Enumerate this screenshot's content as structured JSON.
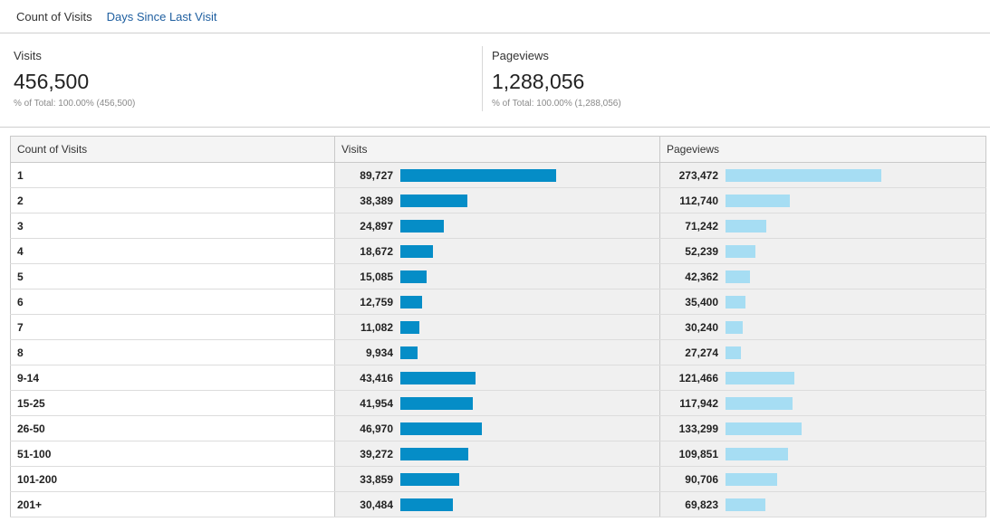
{
  "tabs": [
    {
      "label": "Count of Visits",
      "active": true
    },
    {
      "label": "Days Since Last Visit",
      "active": false
    }
  ],
  "summary": {
    "visits": {
      "label": "Visits",
      "value": "456,500",
      "sub": "% of Total: 100.00% (456,500)"
    },
    "pageviews": {
      "label": "Pageviews",
      "value": "1,288,056",
      "sub": "% of Total: 100.00% (1,288,056)"
    }
  },
  "colors": {
    "visits_bar": "#058dc7",
    "pageviews_bar": "#a6ddf3",
    "tab_link": "#1f5fa0"
  },
  "table": {
    "headers": [
      "Count of Visits",
      "Visits",
      "Pageviews"
    ],
    "rows": [
      {
        "label": "1",
        "visits": "89,727",
        "pageviews": "273,472"
      },
      {
        "label": "2",
        "visits": "38,389",
        "pageviews": "112,740"
      },
      {
        "label": "3",
        "visits": "24,897",
        "pageviews": "71,242"
      },
      {
        "label": "4",
        "visits": "18,672",
        "pageviews": "52,239"
      },
      {
        "label": "5",
        "visits": "15,085",
        "pageviews": "42,362"
      },
      {
        "label": "6",
        "visits": "12,759",
        "pageviews": "35,400"
      },
      {
        "label": "7",
        "visits": "11,082",
        "pageviews": "30,240"
      },
      {
        "label": "8",
        "visits": "9,934",
        "pageviews": "27,274"
      },
      {
        "label": "9-14",
        "visits": "43,416",
        "pageviews": "121,466"
      },
      {
        "label": "15-25",
        "visits": "41,954",
        "pageviews": "117,942"
      },
      {
        "label": "26-50",
        "visits": "46,970",
        "pageviews": "133,299"
      },
      {
        "label": "51-100",
        "visits": "39,272",
        "pageviews": "109,851"
      },
      {
        "label": "101-200",
        "visits": "33,859",
        "pageviews": "90,706"
      },
      {
        "label": "201+",
        "visits": "30,484",
        "pageviews": "69,823"
      }
    ]
  }
}
